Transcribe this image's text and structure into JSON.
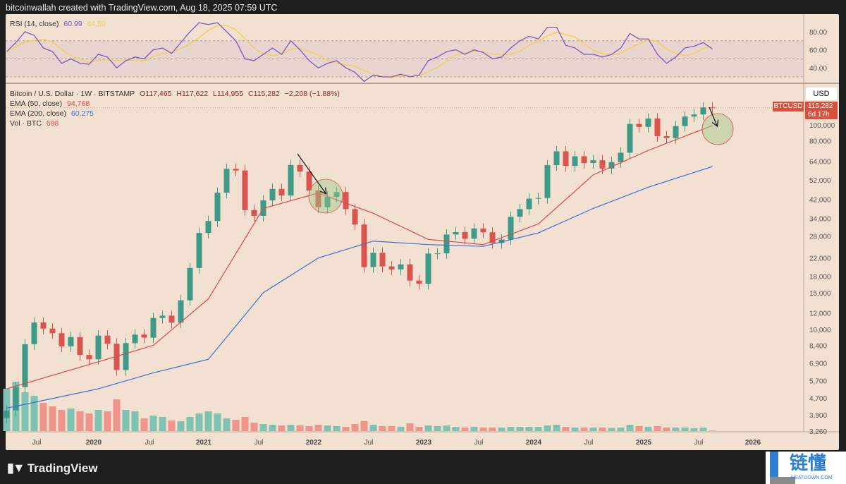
{
  "header": {
    "attribution": "bitcoinwallah created with TradingView.com, Aug 18, 2025 07:59 UTC"
  },
  "rsi_legend": {
    "label": "RSI (14, close)",
    "value": "60.99",
    "ma_value": "64.50"
  },
  "main_legend": {
    "symbol": "Bitcoin / U.S. Dollar · 1W · BITSTAMP",
    "open": "O117,465",
    "high": "H117,622",
    "low": "L114,955",
    "close": "C115,282",
    "change": "−2,208 (−1.88%)",
    "ema50_label": "EMA (50, close)",
    "ema50_value": "94,768",
    "ema200_label": "EMA (200, close)",
    "ema200_value": "60,275",
    "vol_label": "Vol · BTC",
    "vol_value": "698"
  },
  "price_axis": {
    "currency": "USD",
    "tag_symbol": "BTCUSD",
    "tag_price": "115,282",
    "tag_countdown": "6d 17h"
  },
  "footer": {
    "brand": "TradingView",
    "watermark": "链懂",
    "watermark_sub": "NEATDOWN.COM"
  },
  "colors": {
    "background": "#f2e0d1",
    "up": "#3d9a86",
    "down": "#d9534f",
    "ema50": "#e0484a",
    "ema200": "#3a6fd8",
    "rsi": "#7e57c2",
    "rsi_ma": "#f2cf4a",
    "vol_up": "#7fc3b3",
    "vol_down": "#f0958c",
    "annotation_circle": "#9cc98a"
  },
  "chart_data": {
    "type": "candlestick",
    "timeframe": "monthly approximation of weekly chart",
    "y_scale": "log",
    "grid": false,
    "x_ticks": [
      "Jul",
      "2020",
      "Jul",
      "2021",
      "Jul",
      "2022",
      "Jul",
      "2023",
      "Jul",
      "2024",
      "Jul",
      "2025",
      "Jul",
      "2026"
    ],
    "y_ticks": [
      "100,000",
      "80,000",
      "64,000",
      "52,000",
      "42,000",
      "34,000",
      "28,000",
      "22,000",
      "18,000",
      "15,000",
      "12,000",
      "10,000",
      "8,400",
      "6,900",
      "5,700",
      "4,700",
      "3,900",
      "3,260"
    ],
    "rsi_ticks": [
      "80.00",
      "60.00",
      "40.00"
    ],
    "start_month": "2019-03",
    "close": [
      4100,
      5300,
      8500,
      10800,
      10100,
      9600,
      8300,
      9200,
      7550,
      7200,
      9350,
      8550,
      6400,
      8600,
      9450,
      9140,
      11350,
      11650,
      10780,
      13800,
      19700,
      29000,
      33100,
      45200,
      58800,
      57700,
      37300,
      35000,
      41500,
      47100,
      43800,
      61300,
      57000,
      46300,
      38500,
      43200,
      45500,
      37700,
      31800,
      19900,
      23300,
      20050,
      19400,
      20500,
      17150,
      16550,
      23100,
      23150,
      28500,
      29250,
      27200,
      30450,
      29200,
      25950,
      26950,
      34650,
      37700,
      42300,
      42600,
      61200,
      71300,
      60700,
      67500,
      62700,
      64600,
      59000,
      63300,
      70200,
      96400,
      93400,
      102400,
      84300,
      82500,
      94200,
      104600,
      107100,
      115700,
      115282
    ],
    "ema50": {
      "months": [
        "2019-03",
        "2020-01",
        "2020-07",
        "2021-01",
        "2021-07",
        "2022-01",
        "2022-07",
        "2023-01",
        "2023-07",
        "2024-01",
        "2024-07",
        "2025-01",
        "2025-08"
      ],
      "values": [
        5200,
        7000,
        8400,
        14000,
        38000,
        45000,
        36000,
        27000,
        25500,
        32000,
        55000,
        72000,
        94768
      ]
    },
    "ema200": {
      "months": [
        "2019-03",
        "2020-01",
        "2020-07",
        "2021-01",
        "2021-07",
        "2022-01",
        "2022-07",
        "2023-01",
        "2023-07",
        "2024-01",
        "2024-07",
        "2025-01",
        "2025-08"
      ],
      "values": [
        4200,
        5200,
        6200,
        7200,
        15000,
        22000,
        26500,
        25500,
        25000,
        29000,
        38000,
        48000,
        60275
      ]
    },
    "rsi": [
      58,
      68,
      80,
      76,
      62,
      58,
      45,
      50,
      45,
      44,
      55,
      52,
      40,
      48,
      52,
      50,
      60,
      62,
      56,
      68,
      80,
      90,
      88,
      90,
      80,
      70,
      50,
      48,
      55,
      62,
      55,
      70,
      60,
      48,
      40,
      45,
      48,
      40,
      35,
      25,
      32,
      30,
      30,
      33,
      30,
      32,
      48,
      52,
      58,
      60,
      55,
      60,
      57,
      50,
      52,
      62,
      70,
      75,
      72,
      85,
      85,
      65,
      62,
      55,
      55,
      52,
      55,
      62,
      78,
      72,
      72,
      55,
      45,
      52,
      62,
      64,
      68,
      61
    ],
    "volume": [
      60000,
      70000,
      55000,
      50000,
      40000,
      35000,
      30000,
      32000,
      28000,
      25000,
      30000,
      28000,
      45000,
      30000,
      28000,
      18000,
      22000,
      20000,
      15000,
      14000,
      20000,
      25000,
      28000,
      25000,
      18000,
      16000,
      20000,
      12000,
      10000,
      9000,
      8000,
      9000,
      8000,
      7000,
      9000,
      8000,
      7000,
      6000,
      10000,
      14000,
      9000,
      7000,
      7000,
      6000,
      11000,
      6000,
      8000,
      7000,
      8000,
      6000,
      5000,
      6000,
      5000,
      5000,
      5000,
      6000,
      6000,
      6000,
      6000,
      8000,
      9000,
      6000,
      5000,
      5000,
      5000,
      5000,
      4500,
      5000,
      9000,
      7000,
      6000,
      7000,
      5000,
      5000,
      5000,
      4000,
      5000,
      698
    ]
  }
}
